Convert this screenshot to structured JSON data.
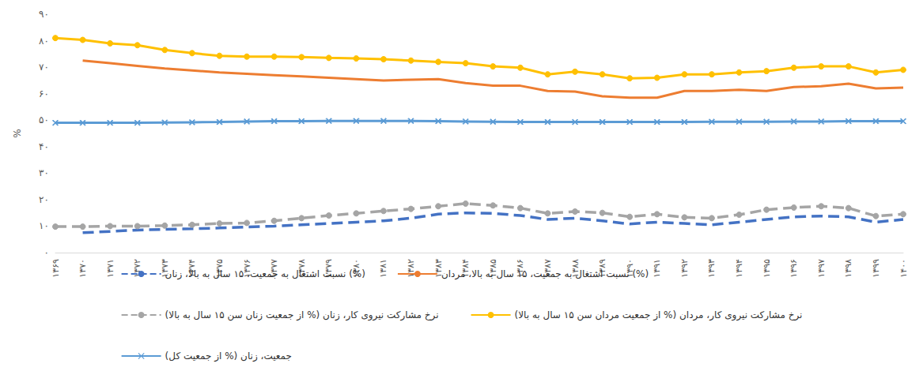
{
  "chart_data": {
    "type": "line",
    "y_label": "%",
    "categories": [
      "۱۳۶۹",
      "۱۳۷۰",
      "۱۳۷۱",
      "۱۳۷۲",
      "۱۳۷۳",
      "۱۳۷۴",
      "۱۳۷۵",
      "۱۳۷۶",
      "۱۳۷۷",
      "۱۳۷۸",
      "۱۳۷۹",
      "۱۳۸۰",
      "۱۳۸۱",
      "۱۳۸۲",
      "۱۳۸۳",
      "۱۳۸۴",
      "۱۳۸۵",
      "۱۳۸۶",
      "۱۳۸۷",
      "۱۳۸۸",
      "۱۳۸۹",
      "۱۳۹۰",
      "۱۳۹۱",
      "۱۳۹۲",
      "۱۳۹۳",
      "۱۳۹۴",
      "۱۳۹۵",
      "۱۳۹۶",
      "۱۳۹۷",
      "۱۳۹۸",
      "۱۳۹۹",
      "۱۴۰۰"
    ],
    "ylim": [
      0,
      90
    ],
    "yticks": [
      {
        "value": 0,
        "label": "۰"
      },
      {
        "value": 10,
        "label": "۱۰"
      },
      {
        "value": 20,
        "label": "۲۰"
      },
      {
        "value": 30,
        "label": "۳۰"
      },
      {
        "value": 40,
        "label": "۴۰"
      },
      {
        "value": 50,
        "label": "۵۰"
      },
      {
        "value": 60,
        "label": "۶۰"
      },
      {
        "value": 70,
        "label": "۷۰"
      },
      {
        "value": 80,
        "label": "۸۰"
      },
      {
        "value": 90,
        "label": "۹۰"
      }
    ],
    "grid": false,
    "legend": "bottom",
    "series": [
      {
        "name": "نسبت اشتغال به جمعیت، ۱۵ سال به بالا، زنان (%)",
        "color": "#4472c4",
        "line_style": "dashed",
        "marker": "none",
        "values": [
          null,
          7.5,
          8,
          8.5,
          8.8,
          9,
          9.3,
          9.7,
          10,
          10.5,
          11,
          11.5,
          12,
          13,
          14.5,
          15,
          14.8,
          14,
          12.5,
          13,
          12,
          10.8,
          11.5,
          11,
          10.5,
          11.5,
          12.5,
          13.5,
          13.8,
          13.5,
          11.5,
          12.5
        ]
      },
      {
        "name": "نسبت اشتغال به جمعیت، ۱۵ سال به بالا، مردان (%)",
        "color": "#ed7d31",
        "line_style": "solid",
        "marker": "none",
        "values": [
          null,
          72.5,
          71.5,
          70.5,
          69.5,
          68.8,
          68,
          67.5,
          67,
          66.5,
          66,
          65.5,
          65,
          65.3,
          65.5,
          64,
          63,
          63,
          61,
          60.8,
          59,
          58.5,
          58.5,
          61,
          61,
          61.5,
          61,
          62.5,
          62.8,
          63.8,
          62,
          62.3
        ]
      },
      {
        "name": "نرخ مشارکت نیروی کار، زنان (% از جمعیت زنان سن ۱۵ سال به بالا)",
        "color": "#a5a5a5",
        "line_style": "dashed",
        "marker": "circle",
        "values": [
          9.8,
          9.8,
          10,
          10,
          10.2,
          10.5,
          11,
          11.2,
          12,
          13,
          14,
          14.8,
          15.7,
          16.5,
          17.5,
          18.5,
          17.8,
          16.8,
          14.8,
          15.5,
          15,
          13.5,
          14.5,
          13.3,
          13,
          14.3,
          16.2,
          17,
          17.5,
          16.8,
          13.8,
          14.5
        ]
      },
      {
        "name": "نرخ مشارکت نیروی کار، مردان (% از جمعیت مردان سن ۱۵ سال به بالا)",
        "color": "#ffc000",
        "line_style": "solid",
        "marker": "circle",
        "values": [
          81,
          80.3,
          79,
          78.3,
          76.5,
          75.3,
          74.3,
          74,
          74,
          73.8,
          73.5,
          73.3,
          73,
          72.5,
          72,
          71.5,
          70.3,
          69.8,
          67.3,
          68.3,
          67.3,
          65.8,
          66,
          67.3,
          67.3,
          68,
          68.5,
          69.8,
          70.3,
          70.3,
          68,
          69
        ]
      },
      {
        "name": "جمعیت، زنان (% از جمعیت کل)",
        "color": "#5b9bd5",
        "line_style": "solid",
        "marker": "x",
        "values": [
          49,
          49,
          49,
          49,
          49.1,
          49.2,
          49.3,
          49.5,
          49.6,
          49.6,
          49.7,
          49.7,
          49.7,
          49.7,
          49.6,
          49.5,
          49.4,
          49.3,
          49.3,
          49.3,
          49.3,
          49.3,
          49.3,
          49.3,
          49.4,
          49.4,
          49.4,
          49.5,
          49.5,
          49.6,
          49.6,
          49.6
        ]
      }
    ]
  }
}
